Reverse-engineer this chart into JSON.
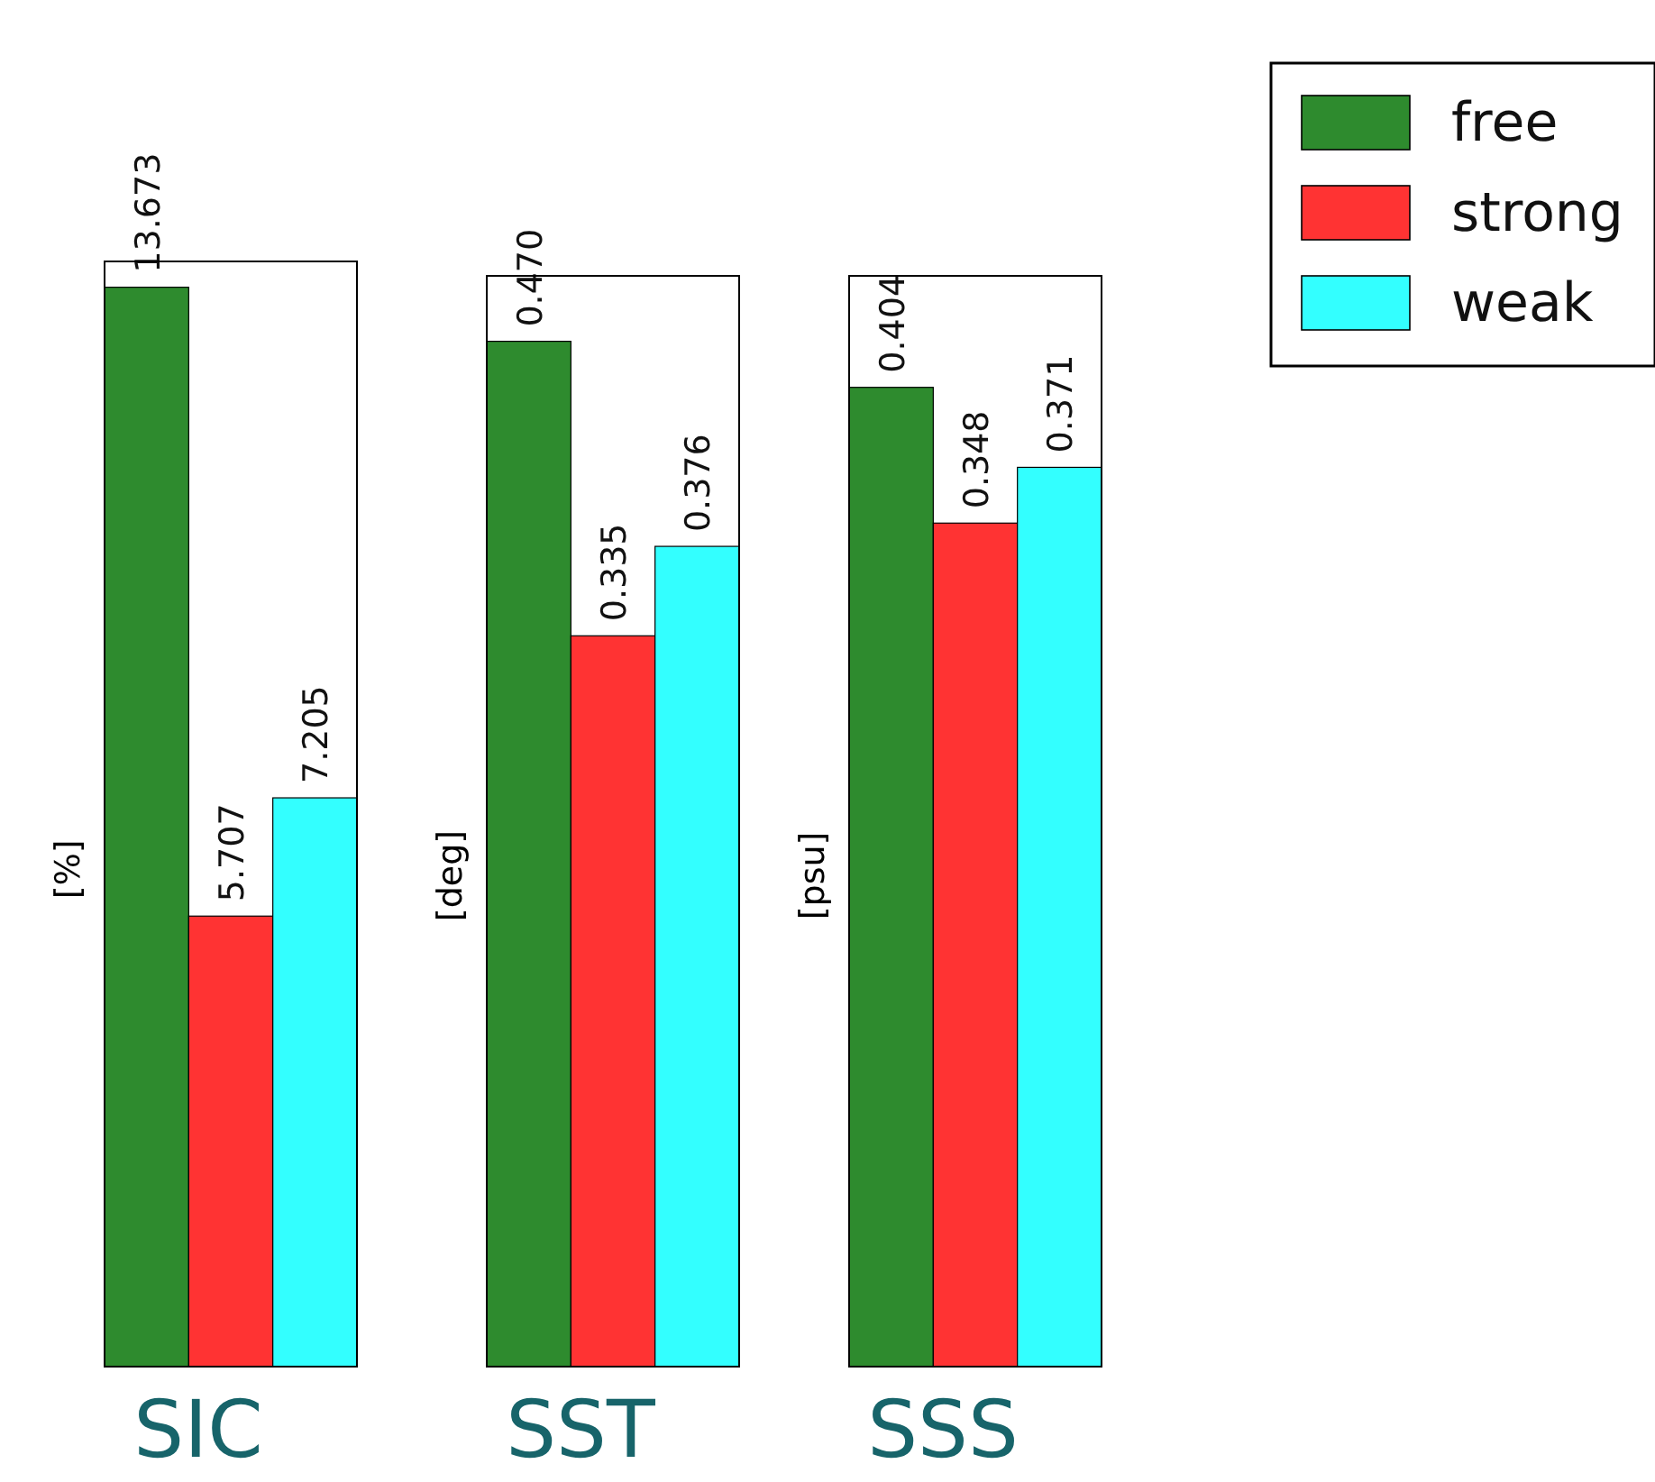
{
  "chart_data": [
    {
      "type": "bar",
      "xlabel": "SIC",
      "ylabel": "[%]",
      "categories": [
        null
      ],
      "ylim": [
        0,
        14
      ],
      "legend": false,
      "grid": false,
      "series": [
        {
          "color": "#2e8b2e",
          "values": [
            13.673
          ],
          "value_labels": [
            "13.673"
          ]
        },
        {
          "color": "#ff3333",
          "values": [
            5.707
          ],
          "value_labels": [
            "5.707"
          ]
        },
        {
          "color": "#33ffff",
          "values": [
            7.205
          ],
          "value_labels": [
            "7.205"
          ]
        }
      ]
    },
    {
      "type": "bar",
      "xlabel": "SST",
      "ylabel": "[deg]",
      "categories": [
        null
      ],
      "ylim": [
        0,
        0.5
      ],
      "legend": false,
      "grid": false,
      "series": [
        {
          "color": "#2e8b2e",
          "values": [
            0.47
          ],
          "value_labels": [
            "0.470"
          ]
        },
        {
          "color": "#ff3333",
          "values": [
            0.335
          ],
          "value_labels": [
            "0.335"
          ]
        },
        {
          "color": "#33ffff",
          "values": [
            0.376
          ],
          "value_labels": [
            "0.376"
          ]
        }
      ]
    },
    {
      "type": "bar",
      "xlabel": "SSS",
      "ylabel": "[psu]",
      "categories": [
        null
      ],
      "ylim": [
        0,
        0.45
      ],
      "legend": "top right",
      "grid": false,
      "series": [
        {
          "name": "free",
          "color": "#2e8b2e",
          "values": [
            0.404
          ],
          "value_labels": [
            "0.404"
          ]
        },
        {
          "name": "strong",
          "color": "#ff3333",
          "values": [
            0.348
          ],
          "value_labels": [
            "0.348"
          ]
        },
        {
          "name": "weak",
          "color": "#33ffff",
          "values": [
            0.371
          ],
          "value_labels": [
            "0.371"
          ]
        }
      ]
    }
  ]
}
